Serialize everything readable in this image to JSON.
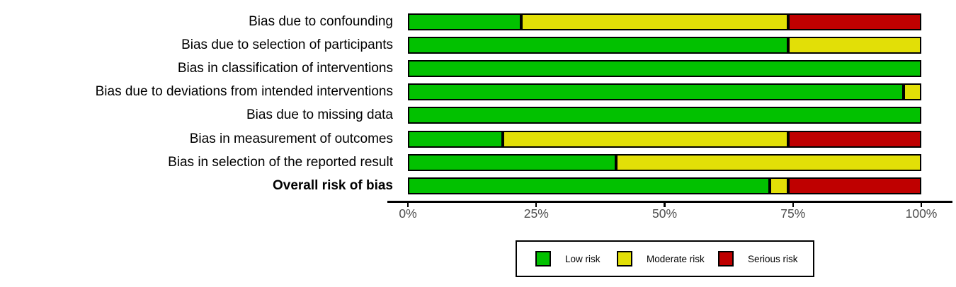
{
  "chart_data": {
    "type": "bar",
    "orientation": "horizontal",
    "stacked": true,
    "title": "",
    "xlabel": "",
    "ylabel": "",
    "xlim": [
      0,
      100
    ],
    "x_ticks": [
      "0%",
      "25%",
      "50%",
      "75%",
      "100%"
    ],
    "grid": false,
    "legend_position": "bottom",
    "categories": [
      "Bias due to confounding",
      "Bias due to selection of participants",
      "Bias in classification of interventions",
      "Bias due to deviations from intended interventions",
      "Bias due to missing data",
      "Bias in measurement of outcomes",
      "Bias in selection of the reported result",
      "Overall risk of bias"
    ],
    "series": [
      {
        "name": "Low risk",
        "color_key": "low",
        "values": [
          22,
          74,
          100,
          96.5,
          100,
          18.5,
          40.5,
          70.5
        ]
      },
      {
        "name": "Moderate risk",
        "color_key": "moderate",
        "values": [
          52,
          26,
          0,
          3.5,
          0,
          55.5,
          59.5,
          3.5
        ]
      },
      {
        "name": "Serious risk",
        "color_key": "serious",
        "values": [
          26,
          0,
          0,
          0,
          0,
          26,
          0,
          26
        ]
      }
    ]
  },
  "colors": {
    "low": "#02C100",
    "moderate": "#E2DF07",
    "serious": "#BF0000",
    "border": "#000000"
  },
  "legend": {
    "items": [
      {
        "label": "Low risk",
        "color_key": "low"
      },
      {
        "label": "Moderate risk",
        "color_key": "moderate"
      },
      {
        "label": "Serious risk",
        "color_key": "serious"
      }
    ]
  }
}
